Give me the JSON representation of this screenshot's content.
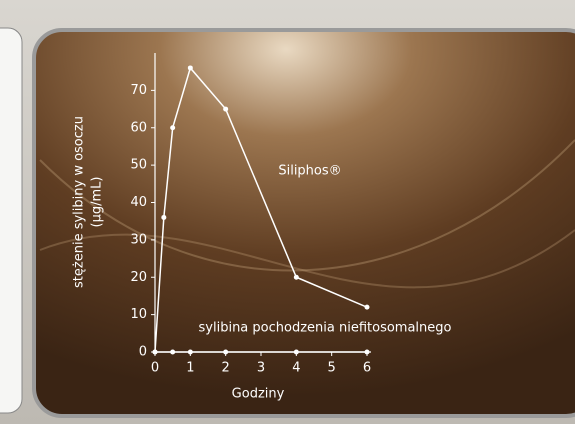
{
  "chart_data": {
    "type": "line",
    "ylabel": [
      "stężenie sylibiny w osoczu",
      "(µg/mL)"
    ],
    "xlabel": "Godziny",
    "xlim": [
      0,
      6
    ],
    "xticks": [
      0,
      1,
      2,
      3,
      4,
      5,
      6
    ],
    "ylim": [
      0,
      80
    ],
    "yticks": [
      0,
      10,
      20,
      30,
      40,
      50,
      60,
      70
    ],
    "series": [
      {
        "name": "Siliphos®",
        "color": "#ffffff",
        "x": [
          0,
          0.25,
          0.5,
          1,
          2,
          4,
          6
        ],
        "values": [
          0,
          36,
          60,
          76,
          65,
          20,
          12
        ]
      },
      {
        "name": "sylibina pochodzenia niefitosomalnego",
        "color": "#ffffff",
        "x": [
          0,
          0.5,
          1,
          2,
          4,
          6
        ],
        "values": [
          0,
          0,
          0,
          0,
          0,
          0
        ]
      }
    ]
  }
}
